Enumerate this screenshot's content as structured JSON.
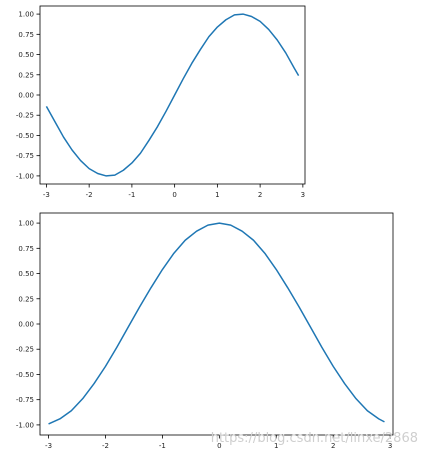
{
  "chart_data": [
    {
      "type": "line",
      "title": "",
      "xlabel": "",
      "ylabel": "",
      "xlim": [
        -3.15,
        3.05
      ],
      "ylim": [
        -1.1,
        1.1
      ],
      "xticks": [
        "-3",
        "-2",
        "-1",
        "0",
        "1",
        "2",
        "3"
      ],
      "yticks": [
        "1.00",
        "0.75",
        "0.50",
        "0.25",
        "0.00",
        "-0.25",
        "-0.50",
        "-0.75",
        "-1.00"
      ],
      "grid": false,
      "legend": "none",
      "color": "#1f77b4",
      "x": [
        -3.0,
        -2.8,
        -2.6,
        -2.4,
        -2.2,
        -2.0,
        -1.8,
        -1.6,
        -1.4,
        -1.2,
        -1.0,
        -0.8,
        -0.6,
        -0.4,
        -0.2,
        0.0,
        0.2,
        0.4,
        0.6,
        0.8,
        1.0,
        1.2,
        1.4,
        1.6,
        1.8,
        2.0,
        2.2,
        2.4,
        2.6,
        2.8,
        2.9
      ],
      "y": [
        -0.14,
        -0.33,
        -0.52,
        -0.68,
        -0.81,
        -0.91,
        -0.97,
        -1.0,
        -0.99,
        -0.93,
        -0.84,
        -0.72,
        -0.56,
        -0.39,
        -0.2,
        0.0,
        0.2,
        0.39,
        0.56,
        0.72,
        0.84,
        0.93,
        0.99,
        1.0,
        0.97,
        0.91,
        0.81,
        0.68,
        0.52,
        0.33,
        0.24
      ]
    },
    {
      "type": "line",
      "title": "",
      "xlabel": "",
      "ylabel": "",
      "xlim": [
        -3.15,
        3.05
      ],
      "ylim": [
        -1.1,
        1.1
      ],
      "xticks": [
        "-3",
        "-2",
        "-1",
        "0",
        "1",
        "2",
        "3"
      ],
      "yticks": [
        "1.00",
        "0.75",
        "0.50",
        "0.25",
        "0.00",
        "-0.25",
        "-0.50",
        "-0.75",
        "-1.00"
      ],
      "grid": false,
      "legend": "none",
      "color": "#1f77b4",
      "x": [
        -3.0,
        -2.8,
        -2.6,
        -2.4,
        -2.2,
        -2.0,
        -1.8,
        -1.6,
        -1.4,
        -1.2,
        -1.0,
        -0.8,
        -0.6,
        -0.4,
        -0.2,
        0.0,
        0.2,
        0.4,
        0.6,
        0.8,
        1.0,
        1.2,
        1.4,
        1.6,
        1.8,
        2.0,
        2.2,
        2.4,
        2.6,
        2.8,
        2.9
      ],
      "y": [
        -0.99,
        -0.94,
        -0.86,
        -0.74,
        -0.59,
        -0.42,
        -0.23,
        -0.03,
        0.17,
        0.36,
        0.54,
        0.7,
        0.83,
        0.92,
        0.98,
        1.0,
        0.98,
        0.92,
        0.83,
        0.7,
        0.54,
        0.36,
        0.17,
        -0.03,
        -0.23,
        -0.42,
        -0.59,
        -0.74,
        -0.86,
        -0.94,
        -0.97
      ]
    }
  ],
  "watermark": "https://blog.csdn.net/linxe/2868"
}
